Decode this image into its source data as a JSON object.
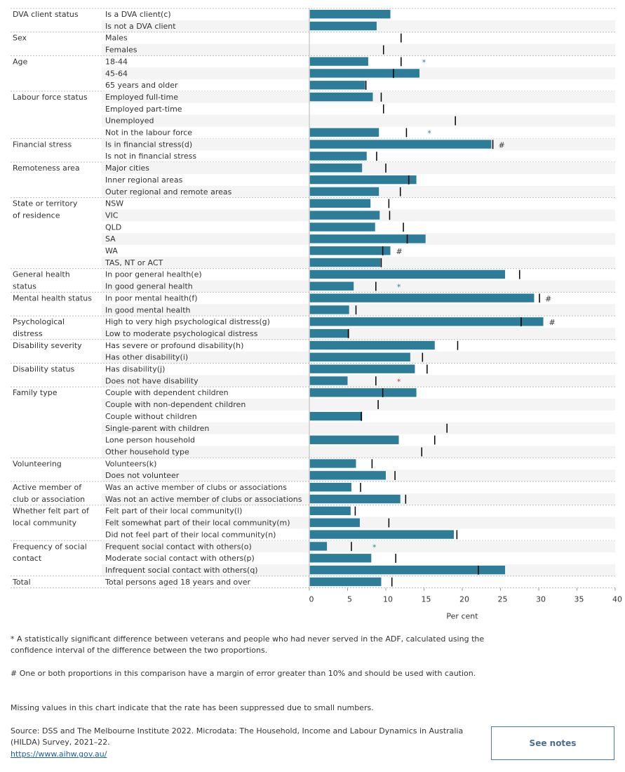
{
  "chart_data": {
    "type": "bar",
    "orientation": "horizontal",
    "xlabel": "Per cent",
    "xlim": [
      0,
      40
    ],
    "xticks": [
      0,
      5,
      10,
      15,
      20,
      25,
      30,
      35,
      40
    ],
    "bar_color": "#2d7d99",
    "marker_color": "#000000",
    "flag_colors": {
      "star_blue": "#2d7d99",
      "star_red": "#c0392b",
      "hash": "#333333"
    },
    "groups": [
      {
        "label": "DVA client status",
        "rows": [
          {
            "label": "Is a DVA client(c)",
            "value": 10.6,
            "marker": null
          },
          {
            "label": "Is not a DVA client",
            "value": 8.8,
            "marker": null
          }
        ]
      },
      {
        "label": "Sex",
        "rows": [
          {
            "label": "Males",
            "value": null,
            "marker": 12.0
          },
          {
            "label": "Females",
            "value": null,
            "marker": 9.7
          }
        ]
      },
      {
        "label": "Age",
        "rows": [
          {
            "label": "18-44",
            "value": 7.7,
            "marker": 12.0,
            "flag": "*"
          },
          {
            "label": "45-64",
            "value": 14.4,
            "marker": 11.0
          },
          {
            "label": "65 years and older",
            "value": 7.3,
            "marker": 7.4
          }
        ]
      },
      {
        "label": "Labour force status",
        "rows": [
          {
            "label": "Employed full-time",
            "value": 8.3,
            "marker": 9.4
          },
          {
            "label": "Employed part-time",
            "value": null,
            "marker": 9.7
          },
          {
            "label": "Unemployed",
            "value": null,
            "marker": 19.1
          },
          {
            "label": "Not in the labour force",
            "value": 9.1,
            "marker": 12.7,
            "flag": "*"
          }
        ]
      },
      {
        "label": "Financial stress",
        "rows": [
          {
            "label": "Is in financial stress(d)",
            "value": 23.8,
            "marker": 24.0,
            "flag": "#"
          },
          {
            "label": "Is not in financial stress",
            "value": 7.5,
            "marker": 8.8
          }
        ]
      },
      {
        "label": "Remoteness area",
        "rows": [
          {
            "label": "Major cities",
            "value": 6.9,
            "marker": 10.0
          },
          {
            "label": "Inner regional areas",
            "value": 14.0,
            "marker": 13.0
          },
          {
            "label": "Outer regional and remote areas",
            "value": 9.1,
            "marker": 11.9
          }
        ]
      },
      {
        "label": "State or territory of residence",
        "rows": [
          {
            "label": "NSW",
            "value": 8.0,
            "marker": 10.4
          },
          {
            "label": "VIC",
            "value": 9.2,
            "marker": 10.5
          },
          {
            "label": "QLD",
            "value": 8.6,
            "marker": 12.3
          },
          {
            "label": "SA",
            "value": 15.2,
            "marker": 12.8
          },
          {
            "label": "WA",
            "value": 10.6,
            "marker": 9.6,
            "flag": "#"
          },
          {
            "label": "TAS, NT or ACT",
            "value": 9.3,
            "marker": 9.4
          }
        ]
      },
      {
        "label": "General health status",
        "rows": [
          {
            "label": "In poor general health(e)",
            "value": 25.6,
            "marker": 27.5
          },
          {
            "label": "In good general health",
            "value": 5.8,
            "marker": 8.7,
            "flag": "*"
          }
        ]
      },
      {
        "label": "Mental health status",
        "rows": [
          {
            "label": "In poor mental health(f)",
            "value": 29.4,
            "marker": 30.1,
            "flag": "#"
          },
          {
            "label": "In good mental health",
            "value": 5.2,
            "marker": 6.1
          }
        ]
      },
      {
        "label": "Psychological distress",
        "rows": [
          {
            "label": "High to very high psychological distress(g)",
            "value": 30.6,
            "marker": 27.7,
            "flag": "#"
          },
          {
            "label": "Low to moderate psychological distress",
            "value": 5.2,
            "marker": 5.1
          }
        ]
      },
      {
        "label": "Disability severity",
        "rows": [
          {
            "label": "Has severe or profound disability(h)",
            "value": 16.4,
            "marker": 19.4
          },
          {
            "label": "Has other disability(i)",
            "value": 13.2,
            "marker": 14.8
          }
        ]
      },
      {
        "label": "Disability status",
        "rows": [
          {
            "label": "Has disability(j)",
            "value": 13.8,
            "marker": 15.4
          },
          {
            "label": "Does not have disability",
            "value": 5.0,
            "marker": 8.7,
            "flag": "*r"
          }
        ]
      },
      {
        "label": "Family type",
        "rows": [
          {
            "label": "Couple with dependent children",
            "value": 14.0,
            "marker": 9.6
          },
          {
            "label": "Couple with non-dependent children",
            "value": null,
            "marker": 9.0
          },
          {
            "label": "Couple without children",
            "value": 6.9,
            "marker": 6.8
          },
          {
            "label": "Single-parent with children",
            "value": null,
            "marker": 18.0
          },
          {
            "label": "Lone person household",
            "value": 11.7,
            "marker": 16.4
          },
          {
            "label": "Other household type",
            "value": null,
            "marker": 14.7
          }
        ]
      },
      {
        "label": "Volunteering",
        "rows": [
          {
            "label": "Volunteers(k)",
            "value": 6.1,
            "marker": 8.2
          },
          {
            "label": "Does not volunteer",
            "value": 10.0,
            "marker": 11.2
          }
        ]
      },
      {
        "label": "Active member of club or association",
        "rows": [
          {
            "label": "Was an active member of clubs or associations",
            "value": 5.5,
            "marker": 6.7
          },
          {
            "label": "Was not an active member of clubs or associations",
            "value": 11.9,
            "marker": 12.6
          }
        ]
      },
      {
        "label": "Whether felt part of local community",
        "rows": [
          {
            "label": "Felt part of their local community(l)",
            "value": 5.4,
            "marker": 6.0
          },
          {
            "label": "Felt somewhat part of their local community(m)",
            "value": 6.6,
            "marker": 10.4
          },
          {
            "label": "Did not feel part of their local community(n)",
            "value": 18.9,
            "marker": 19.3
          }
        ]
      },
      {
        "label": "Frequency of social contact",
        "rows": [
          {
            "label": "Frequent social contact with others(o)",
            "value": 2.3,
            "marker": 5.5,
            "flag": "*"
          },
          {
            "label": "Moderate social contact with others(p)",
            "value": 8.1,
            "marker": 11.3
          },
          {
            "label": "Infrequent social contact with others(q)",
            "value": 25.6,
            "marker": 22.1
          }
        ]
      },
      {
        "label": "Total",
        "rows": [
          {
            "label": "Total persons aged 18 years and over",
            "value": 9.4,
            "marker": 10.8
          }
        ]
      }
    ]
  },
  "notes": {
    "star": "* A statistically significant difference between veterans and people who had never served in the ADF, calculated using the confidence interval of the difference between the two proportions.",
    "hash": "# One or both proportions in this comparison have a margin of error greater than 10% and should be used with caution.",
    "missing": "Missing values in this chart indicate that the rate has been suppressed due to small numbers.",
    "source": "Source: DSS and The Melbourne Institute 2022. Microdata: The Household, Income and Labour Dynamics in Australia (HILDA) Survey, 2021–22.",
    "link": "https://www.aihw.gov.au/"
  },
  "see_notes_label": "See notes"
}
